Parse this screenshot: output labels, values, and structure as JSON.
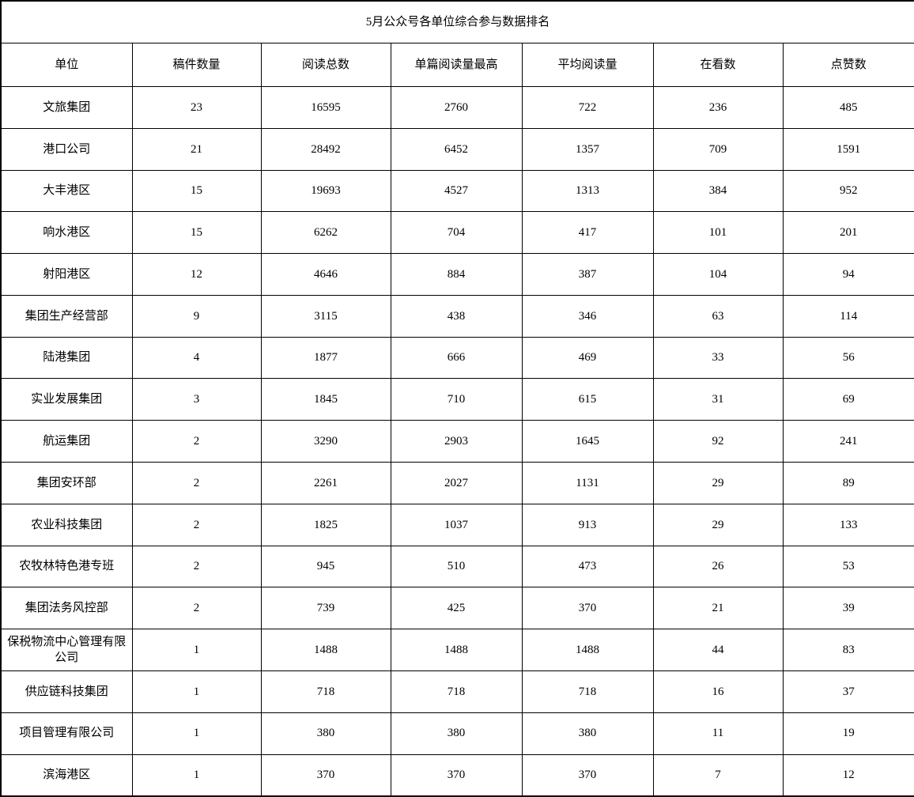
{
  "table": {
    "title": "5月公众号各单位综合参与数据排名",
    "columns": [
      "单位",
      "稿件数量",
      "阅读总数",
      "单篇阅读量最高",
      "平均阅读量",
      "在看数",
      "点赞数"
    ],
    "rows": [
      [
        "文旅集团",
        "23",
        "16595",
        "2760",
        "722",
        "236",
        "485"
      ],
      [
        "港口公司",
        "21",
        "28492",
        "6452",
        "1357",
        "709",
        "1591"
      ],
      [
        "大丰港区",
        "15",
        "19693",
        "4527",
        "1313",
        "384",
        "952"
      ],
      [
        "响水港区",
        "15",
        "6262",
        "704",
        "417",
        "101",
        "201"
      ],
      [
        "射阳港区",
        "12",
        "4646",
        "884",
        "387",
        "104",
        "94"
      ],
      [
        "集团生产经营部",
        "9",
        "3115",
        "438",
        "346",
        "63",
        "114"
      ],
      [
        "陆港集团",
        "4",
        "1877",
        "666",
        "469",
        "33",
        "56"
      ],
      [
        "实业发展集团",
        "3",
        "1845",
        "710",
        "615",
        "31",
        "69"
      ],
      [
        "航运集团",
        "2",
        "3290",
        "2903",
        "1645",
        "92",
        "241"
      ],
      [
        "集团安环部",
        "2",
        "2261",
        "2027",
        "1131",
        "29",
        "89"
      ],
      [
        "农业科技集团",
        "2",
        "1825",
        "1037",
        "913",
        "29",
        "133"
      ],
      [
        "农牧林特色港专班",
        "2",
        "945",
        "510",
        "473",
        "26",
        "53"
      ],
      [
        "集团法务风控部",
        "2",
        "739",
        "425",
        "370",
        "21",
        "39"
      ],
      [
        "保税物流中心管理有限公司",
        "1",
        "1488",
        "1488",
        "1488",
        "44",
        "83"
      ],
      [
        "供应链科技集团",
        "1",
        "718",
        "718",
        "718",
        "16",
        "37"
      ],
      [
        "项目管理有限公司",
        "1",
        "380",
        "380",
        "380",
        "11",
        "19"
      ],
      [
        "滨海港区",
        "1",
        "370",
        "370",
        "370",
        "7",
        "12"
      ]
    ],
    "border_color": "#000000",
    "background_color": "#ffffff",
    "text_color": "#000000"
  }
}
